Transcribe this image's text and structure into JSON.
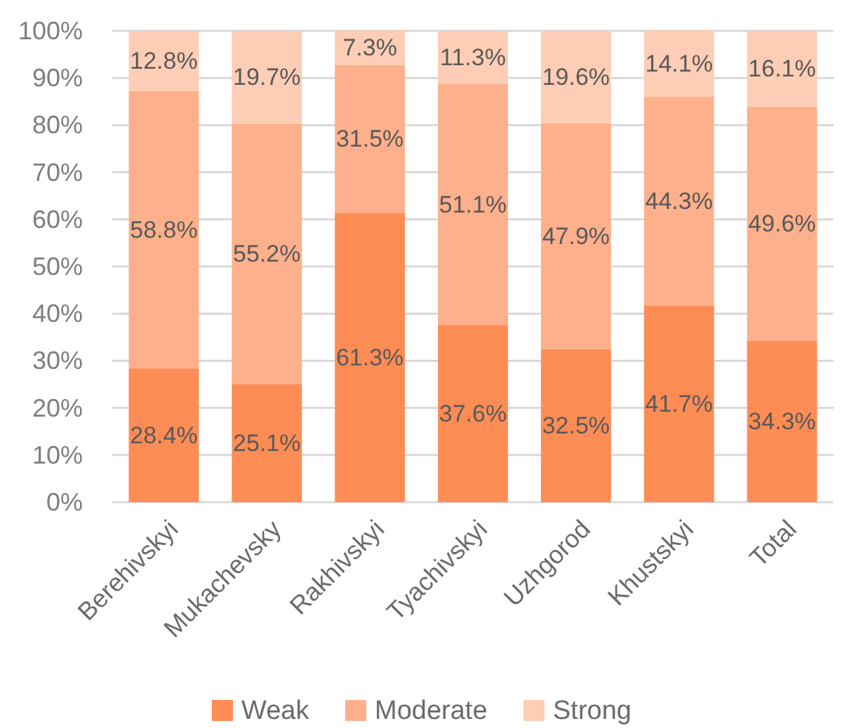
{
  "chart_data": {
    "type": "bar",
    "stacked": true,
    "categories": [
      "Berehivskyi",
      "Mukachevsky",
      "Rakhivskyi",
      "Tyachivskyi",
      "Uzhgorod",
      "Khustskyi",
      "Total"
    ],
    "series": [
      {
        "name": "Weak",
        "color": "#fe8c55",
        "values": [
          28.4,
          25.1,
          61.3,
          37.6,
          32.5,
          41.7,
          34.3
        ],
        "value_labels": [
          "28.4%",
          "25.1%",
          "61.3%",
          "37.6%",
          "32.5%",
          "41.7%",
          "34.3%"
        ]
      },
      {
        "name": "Moderate",
        "color": "#fdb08b",
        "values": [
          58.8,
          55.2,
          31.5,
          51.1,
          47.9,
          44.3,
          49.6
        ],
        "value_labels": [
          "58.8%",
          "55.2%",
          "31.5%",
          "51.1%",
          "47.9%",
          "44.3%",
          "49.6%"
        ]
      },
      {
        "name": "Strong",
        "color": "#fecdb5",
        "values": [
          12.8,
          19.7,
          7.3,
          11.3,
          19.6,
          14.1,
          16.1
        ],
        "value_labels": [
          "12.8%",
          "19.7%",
          "7.3%",
          "11.3%",
          "19.6%",
          "14.1%",
          "16.1%"
        ]
      }
    ],
    "ylim": [
      0,
      100
    ],
    "yticks": [
      {
        "value": 0,
        "label": "0%"
      },
      {
        "value": 10,
        "label": "10%"
      },
      {
        "value": 20,
        "label": "20%"
      },
      {
        "value": 30,
        "label": "30%"
      },
      {
        "value": 40,
        "label": "40%"
      },
      {
        "value": 50,
        "label": "50%"
      },
      {
        "value": 60,
        "label": "60%"
      },
      {
        "value": 70,
        "label": "70%"
      },
      {
        "value": 80,
        "label": "80%"
      },
      {
        "value": 90,
        "label": "90%"
      },
      {
        "value": 100,
        "label": "100%"
      }
    ],
    "grid": "y",
    "legend": "bottom"
  }
}
